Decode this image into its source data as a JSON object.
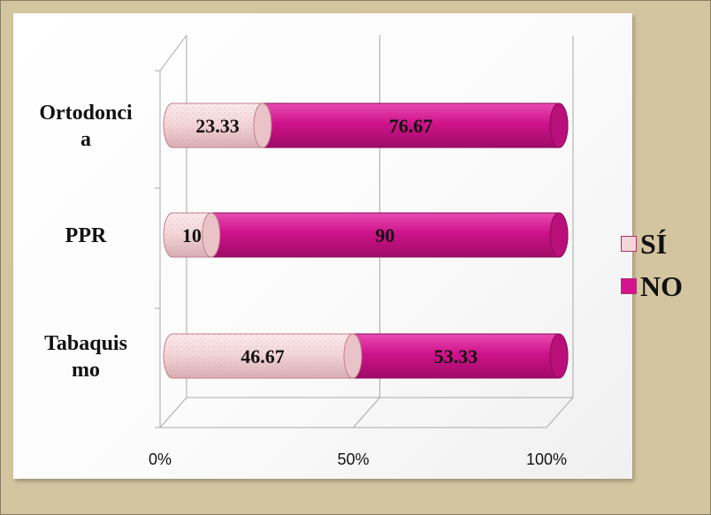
{
  "chart_data": {
    "type": "bar",
    "orientation": "horizontal",
    "stacked": "percent",
    "categories": [
      "Ortodoncia",
      "PPR",
      "Tabaquismo"
    ],
    "category_labels": [
      [
        "Ortodonci",
        "a"
      ],
      [
        "PPR"
      ],
      [
        "Tabaquis",
        "mo"
      ]
    ],
    "series": [
      {
        "name": "SÍ",
        "values": [
          23.33,
          10,
          46.67
        ],
        "labels": [
          "23.33",
          "10",
          "46.67"
        ],
        "color": "#f3d6d8"
      },
      {
        "name": "NO",
        "values": [
          76.67,
          90,
          53.33
        ],
        "labels": [
          "76.67",
          "90",
          "53.33"
        ],
        "color": "#d4148f"
      }
    ],
    "x_ticks": [
      "0%",
      "50%",
      "100%"
    ],
    "xlim": [
      0,
      100
    ],
    "legend_position": "right",
    "grid": true
  }
}
